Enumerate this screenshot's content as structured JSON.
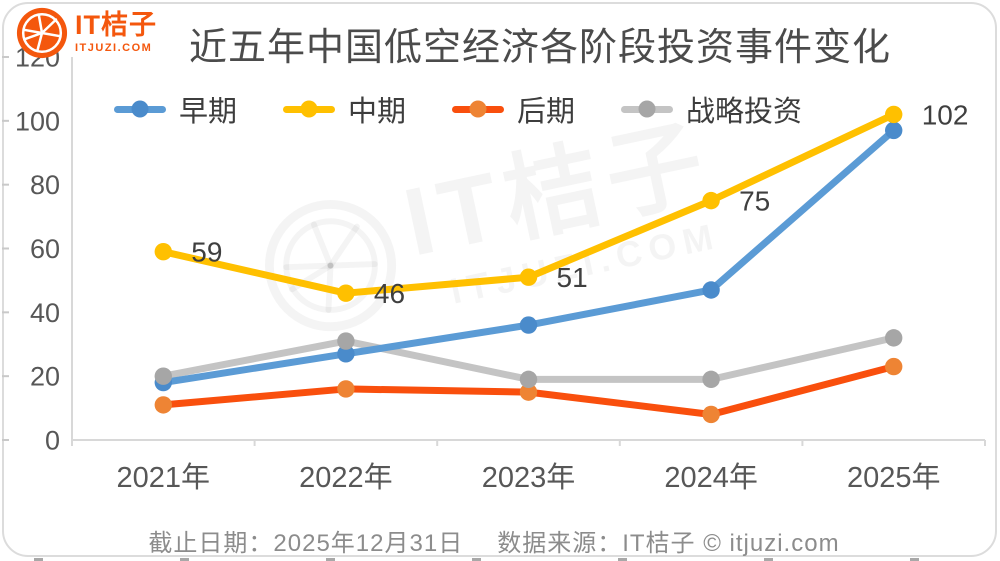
{
  "logo": {
    "brand": "IT桔子",
    "domain": "ITJUZI.COM",
    "color": "#F4570D"
  },
  "header": {
    "title": "近五年中国低空经济各阶段投资事件变化"
  },
  "watermark": {
    "brand": "IT桔子",
    "domain": "ITJUZI.COM"
  },
  "footer": {
    "deadline": "截止日期：2025年12月31日",
    "source": "数据来源：IT桔子 © itjuzi.com"
  },
  "chart_data": {
    "type": "line",
    "title": "近五年中国低空经济各阶段投资事件变化",
    "categories": [
      "2021年",
      "2022年",
      "2023年",
      "2024年",
      "2025年"
    ],
    "series": [
      {
        "name": "早期",
        "values": [
          18,
          27,
          36,
          47,
          97
        ],
        "line_color": "#5B9BD5",
        "marker_color": "#4A8BCB",
        "show_labels": false
      },
      {
        "name": "中期",
        "values": [
          59,
          46,
          51,
          75,
          102
        ],
        "line_color": "#FFC000",
        "marker_color": "#FFC000",
        "show_labels": true
      },
      {
        "name": "后期",
        "values": [
          11,
          16,
          15,
          8,
          23
        ],
        "line_color": "#F94F0D",
        "marker_color": "#EE8434",
        "show_labels": false
      },
      {
        "name": "战略投资",
        "values": [
          20,
          31,
          19,
          19,
          32
        ],
        "line_color": "#C4C4C4",
        "marker_color": "#A6A6A6",
        "show_labels": false
      }
    ],
    "data_labels": {
      "series": "中期",
      "values": [
        59,
        46,
        51,
        75,
        102
      ]
    },
    "y_ticks": [
      0,
      20,
      40,
      60,
      80,
      100,
      120
    ],
    "ylim": [
      0,
      120
    ],
    "xlabel": "",
    "ylabel": "",
    "grid": false,
    "legend_position": "top",
    "axis_color": "#D8D8D8",
    "label_color": "#575757"
  }
}
